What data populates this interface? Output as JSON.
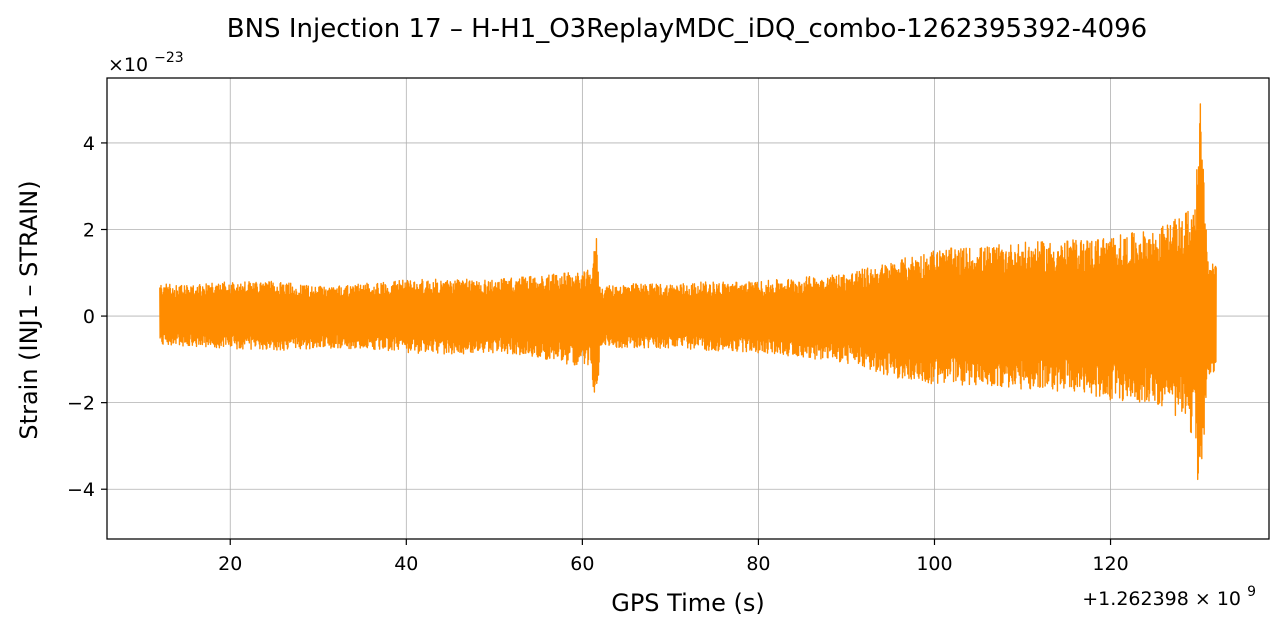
{
  "chart_data": {
    "type": "line",
    "title": "BNS Injection 17 – H-H1_O3ReplayMDC_iDQ_combo-1262395392-4096",
    "xlabel": "GPS Time (s)",
    "ylabel": "Strain (INJ1 – STRAIN)",
    "xlim": [
      6,
      138
    ],
    "ylim": [
      -5.15,
      5.5
    ],
    "xticks": [
      20,
      40,
      60,
      80,
      100,
      120
    ],
    "yticks": [
      -4,
      -2,
      0,
      2,
      4
    ],
    "xtick_labels": [
      "20",
      "40",
      "60",
      "80",
      "100",
      "120"
    ],
    "ytick_labels": [
      "−4",
      "−2",
      "0",
      "2",
      "4"
    ],
    "y_multiplier_label": "×10",
    "y_multiplier_exponent": "−23",
    "x_offset_label": "+1.262398 × 10",
    "x_offset_exponent": "9",
    "grid": true,
    "color": "#ff8c00",
    "series": [
      {
        "x_range": [
          12,
          132
        ],
        "envelope": {
          "x": [
            12,
            15,
            20,
            25,
            30,
            35,
            40,
            45,
            50,
            55,
            58,
            60,
            61,
            61.6,
            62,
            63,
            65,
            70,
            75,
            80,
            85,
            90,
            95,
            100,
            105,
            110,
            115,
            120,
            125,
            128,
            129.5,
            130.2,
            131,
            132
          ],
          "upper": [
            0.75,
            0.7,
            0.8,
            0.8,
            0.7,
            0.75,
            0.85,
            0.85,
            0.85,
            0.95,
            1.0,
            1.0,
            1.1,
            1.85,
            0.7,
            0.7,
            0.75,
            0.75,
            0.8,
            0.8,
            0.9,
            1.0,
            1.25,
            1.55,
            1.6,
            1.7,
            1.75,
            1.85,
            2.0,
            2.3,
            2.6,
            5.0,
            1.4,
            1.3
          ],
          "lower": [
            -0.65,
            -0.7,
            -0.75,
            -0.8,
            -0.75,
            -0.75,
            -0.85,
            -0.9,
            -0.85,
            -0.95,
            -1.1,
            -1.15,
            -1.2,
            -2.35,
            -0.7,
            -0.7,
            -0.75,
            -0.75,
            -0.8,
            -0.85,
            -0.95,
            -1.1,
            -1.4,
            -1.6,
            -1.6,
            -1.7,
            -1.75,
            -1.95,
            -2.0,
            -2.4,
            -2.8,
            -4.65,
            -1.35,
            -1.3
          ]
        }
      }
    ]
  }
}
